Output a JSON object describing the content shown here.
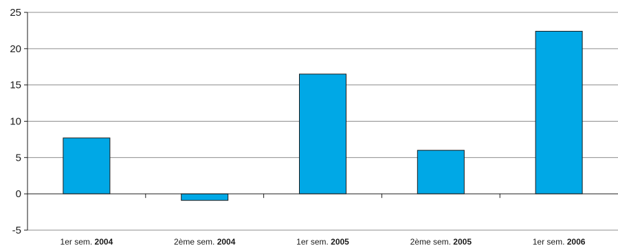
{
  "chart_data": {
    "type": "bar",
    "categories": [
      {
        "prefix": "1er sem.",
        "year": "2004"
      },
      {
        "prefix": "2ème sem.",
        "year": "2004"
      },
      {
        "prefix": "1er sem.",
        "year": "2005"
      },
      {
        "prefix": "2ème sem.",
        "year": "2005"
      },
      {
        "prefix": "1er sem.",
        "year": "2006"
      }
    ],
    "values": [
      7.7,
      -0.9,
      16.5,
      6.0,
      22.4
    ],
    "ylim": [
      -5,
      25
    ],
    "yticks": [
      "-5",
      "0",
      "5",
      "10",
      "15",
      "20",
      "25"
    ],
    "grid": true,
    "bar_color": "#00a8e6",
    "title": "",
    "xlabel": "",
    "ylabel": ""
  }
}
